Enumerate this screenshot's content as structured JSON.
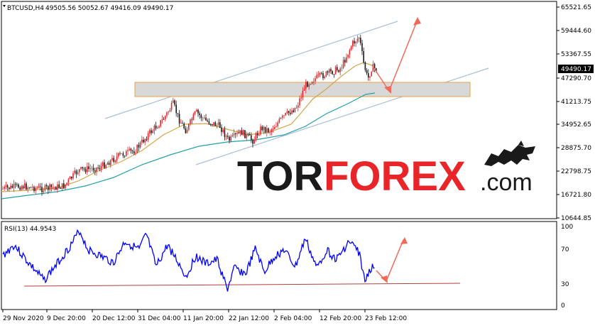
{
  "header": {
    "symbol": "BTCUSD,H4",
    "ohlc": "49505.56 50052.67 49416.09 49490.17"
  },
  "price_axis": {
    "labels": [
      "65521.65",
      "59444.60",
      "53367.55",
      "47290.70",
      "41213.75",
      "34952.65",
      "28875.70",
      "22798.75",
      "16721.80",
      "10644.85"
    ],
    "current_price": "49490.17",
    "current_price_color": "#000000"
  },
  "rsi": {
    "label": "RSI(13) 44.9543",
    "levels": [
      "100",
      "70",
      "30",
      "0"
    ],
    "color": "#0000ff"
  },
  "time_axis": {
    "labels": [
      "29 Nov 2020",
      "9 Dec 20:00",
      "20 Dec 12:00",
      "31 Dec 04:00",
      "11 Jan 20:00",
      "22 Jan 12:00",
      "2 Feb 04:00",
      "12 Feb 20:00",
      "23 Feb 12:00"
    ]
  },
  "watermark": {
    "part1": "TOR",
    "part2": "FOREX",
    "part3": ".com"
  },
  "colors": {
    "bull": "#e8262a",
    "bear": "#1a1a1a",
    "ma_fast": "#d4a54a",
    "ma_slow": "#21a0a8",
    "channel": "#a9bfd6",
    "zone_fill": "#d8d8d8",
    "zone_border": "#e8a33a",
    "arrow": "#f06a5a"
  }
}
